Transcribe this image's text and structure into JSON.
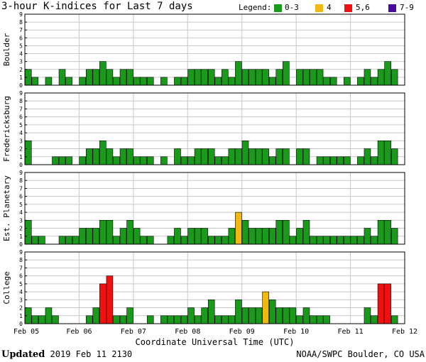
{
  "header": {
    "title": "3-hour K-indices for Last 7 days",
    "legend_title": "Legend:",
    "legend": [
      {
        "label": "0-3",
        "color": "#1a9a1a"
      },
      {
        "label": "4",
        "color": "#f0b810"
      },
      {
        "label": "5,6",
        "color": "#f01010"
      },
      {
        "label": "7-9",
        "color": "#4a0aa0"
      }
    ]
  },
  "footer": {
    "updated_label": "Updated",
    "updated_time": "2019 Feb 11 2130",
    "credit": "NOAA/SWPC Boulder, CO USA"
  },
  "chart_data": {
    "type": "bar",
    "xlabel": "Coordinate Universal Time (UTC)",
    "x_ticks": [
      "Feb 05",
      "Feb 06",
      "Feb 07",
      "Feb 08",
      "Feb 09",
      "Feb 10",
      "Feb 11",
      "Feb 12"
    ],
    "ylim": [
      0,
      9
    ],
    "y_ticks": [
      0,
      1,
      2,
      3,
      4,
      5,
      6,
      7,
      8,
      9
    ],
    "grid": true,
    "series": [
      {
        "name": "Boulder",
        "values": [
          2,
          1,
          0,
          1,
          0,
          2,
          1,
          0,
          1,
          2,
          2,
          3,
          2,
          1,
          2,
          2,
          1,
          1,
          1,
          0,
          1,
          0,
          1,
          1,
          2,
          2,
          2,
          2,
          1,
          2,
          1,
          3,
          2,
          2,
          2,
          2,
          1,
          2,
          3,
          0,
          2,
          2,
          2,
          2,
          1,
          1,
          0,
          1,
          0,
          1,
          2,
          1,
          2,
          3,
          2,
          0
        ]
      },
      {
        "name": "Fredericksburg",
        "values": [
          3,
          0,
          0,
          0,
          1,
          1,
          1,
          0,
          1,
          2,
          2,
          3,
          2,
          1,
          2,
          2,
          1,
          1,
          1,
          0,
          1,
          0,
          2,
          1,
          1,
          2,
          2,
          2,
          1,
          1,
          2,
          2,
          3,
          2,
          2,
          2,
          1,
          2,
          2,
          0,
          2,
          2,
          0,
          1,
          1,
          1,
          1,
          1,
          0,
          1,
          2,
          1,
          3,
          3,
          2,
          0
        ]
      },
      {
        "name": "Est. Planetary",
        "values": [
          3,
          1,
          1,
          0,
          0,
          1,
          1,
          1,
          2,
          2,
          2,
          3,
          3,
          1,
          2,
          3,
          2,
          1,
          1,
          0,
          0,
          1,
          2,
          1,
          2,
          2,
          2,
          1,
          1,
          1,
          2,
          4,
          3,
          2,
          2,
          2,
          2,
          3,
          3,
          1,
          2,
          3,
          1,
          1,
          1,
          1,
          1,
          1,
          1,
          1,
          2,
          1,
          3,
          3,
          2,
          0
        ]
      },
      {
        "name": "College",
        "values": [
          2,
          1,
          1,
          2,
          1,
          0,
          0,
          0,
          0,
          1,
          2,
          5,
          6,
          1,
          1,
          2,
          0,
          0,
          1,
          0,
          1,
          1,
          1,
          1,
          2,
          1,
          2,
          3,
          1,
          1,
          1,
          3,
          2,
          2,
          2,
          4,
          3,
          2,
          2,
          2,
          1,
          2,
          1,
          1,
          1,
          0,
          0,
          0,
          0,
          0,
          2,
          1,
          5,
          5,
          1,
          0
        ]
      }
    ]
  }
}
